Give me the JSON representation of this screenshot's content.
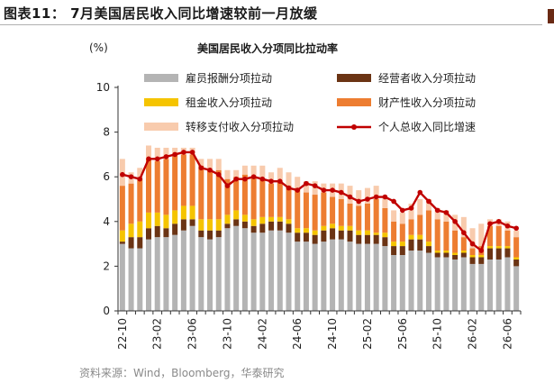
{
  "figure": {
    "title": "图表11： 7月美国居民收入同比增速较前一月放缓",
    "source": "资料来源：Wind，Bloomberg，华泰研究"
  },
  "chart_data": {
    "type": "bar",
    "stacked": true,
    "title": "美国居民收入分项同比拉动率",
    "ylabel": "(%)",
    "xlabel": "",
    "ylim": [
      0,
      10
    ],
    "yticks": [
      0,
      2,
      4,
      6,
      8,
      10
    ],
    "grid": false,
    "legend_position": "top",
    "x": [
      "22-10",
      "22-11",
      "22-12",
      "23-01",
      "23-02",
      "23-03",
      "23-04",
      "23-05",
      "23-06",
      "23-07",
      "23-08",
      "23-09",
      "23-10",
      "23-11",
      "23-12",
      "24-01",
      "24-02",
      "24-03",
      "24-04",
      "24-05",
      "24-06",
      "24-07",
      "24-08",
      "24-09",
      "24-10",
      "24-11",
      "24-12",
      "25-01",
      "25-02",
      "25-03",
      "25-04",
      "25-05",
      "25-06",
      "25-07",
      "25-08",
      "25-09",
      "25-10",
      "25-11",
      "25-12",
      "26-01",
      "26-02",
      "26-03",
      "26-04",
      "26-05",
      "26-06",
      "26-07"
    ],
    "tick_labels": [
      "22-10",
      "23-02",
      "23-06",
      "23-10",
      "24-02",
      "24-06",
      "24-10",
      "25-02",
      "25-06",
      "25-10",
      "26-02",
      "26-06"
    ],
    "series": [
      {
        "name": "雇员报酬分项拉动",
        "color": "#b4b4b4",
        "kind": "bar",
        "values": [
          3.0,
          2.8,
          2.8,
          3.2,
          3.3,
          3.3,
          3.4,
          3.6,
          3.8,
          3.3,
          3.2,
          3.3,
          3.7,
          3.8,
          3.7,
          3.5,
          3.5,
          3.6,
          3.6,
          3.5,
          3.1,
          3.1,
          3.0,
          3.1,
          3.2,
          3.2,
          3.1,
          3.0,
          3.0,
          3.0,
          2.9,
          2.5,
          2.5,
          2.7,
          2.7,
          2.6,
          2.4,
          2.4,
          2.3,
          2.4,
          2.1,
          2.1,
          2.3,
          2.3,
          2.4,
          2.0
        ]
      },
      {
        "name": "经营者收入分项拉动",
        "color": "#6b3414",
        "kind": "bar",
        "values": [
          0.1,
          0.5,
          0.5,
          0.5,
          0.5,
          0.4,
          0.5,
          0.5,
          0.3,
          0.3,
          0.4,
          0.3,
          0.2,
          0.3,
          0.3,
          0.3,
          0.4,
          0.4,
          0.4,
          0.4,
          0.4,
          0.4,
          0.4,
          0.5,
          0.5,
          0.4,
          0.5,
          0.4,
          0.4,
          0.4,
          0.4,
          0.4,
          0.4,
          0.5,
          0.5,
          0.3,
          0.2,
          0.2,
          0.2,
          0.2,
          0.3,
          0.3,
          0.5,
          0.5,
          0.4,
          0.3
        ]
      },
      {
        "name": "租金收入分项拉动",
        "color": "#f5c400",
        "kind": "bar",
        "values": [
          0.5,
          0.6,
          0.7,
          0.7,
          0.6,
          0.6,
          0.6,
          0.6,
          0.6,
          0.5,
          0.5,
          0.5,
          0.4,
          0.4,
          0.3,
          0.3,
          0.3,
          0.2,
          0.2,
          0.2,
          0.2,
          0.2,
          0.2,
          0.2,
          0.2,
          0.2,
          0.2,
          0.2,
          0.2,
          0.1,
          0.2,
          0.2,
          0.2,
          0.2,
          0.2,
          0.2,
          0.1,
          0.1,
          0.1,
          0.1,
          0.1,
          0.1,
          0.1,
          0.1,
          0.1,
          0.1
        ]
      },
      {
        "name": "财产性收入分项拉动",
        "color": "#ed7d31",
        "kind": "bar",
        "values": [
          2.0,
          1.8,
          1.9,
          2.4,
          2.3,
          2.5,
          2.5,
          2.3,
          2.3,
          2.4,
          2.2,
          2.2,
          1.6,
          1.5,
          1.8,
          1.9,
          1.7,
          1.5,
          1.6,
          1.5,
          1.8,
          1.6,
          1.6,
          1.5,
          1.2,
          1.2,
          1.0,
          1.1,
          1.2,
          1.5,
          1.1,
          0.9,
          0.8,
          0.7,
          0.9,
          1.4,
          1.4,
          1.3,
          1.0,
          0.6,
          0.3,
          0.4,
          0.9,
          0.9,
          0.7,
          0.9
        ]
      },
      {
        "name": "转移支付收入分项拉动",
        "color": "#f8cbad",
        "kind": "bar",
        "values": [
          1.2,
          0.5,
          0.5,
          0.6,
          0.6,
          0.5,
          0.3,
          0.3,
          0.3,
          0.3,
          0.5,
          0.5,
          0.4,
          0.3,
          0.4,
          0.5,
          0.6,
          0.5,
          0.6,
          0.6,
          0.5,
          0.5,
          0.6,
          0.4,
          0.6,
          0.7,
          0.8,
          0.7,
          0.7,
          0.6,
          0.5,
          0.5,
          0.5,
          0.7,
          0.7,
          0.5,
          0.5,
          0.5,
          0.7,
          0.9,
          0.9,
          1.0,
          0.3,
          0.3,
          0.4,
          0.3
        ]
      },
      {
        "name": "个人总收入同比增速",
        "color": "#c00000",
        "kind": "line",
        "values": [
          6.1,
          6.0,
          5.9,
          6.8,
          6.8,
          6.9,
          7.0,
          7.1,
          7.1,
          6.4,
          6.3,
          6.1,
          5.6,
          5.9,
          5.9,
          6.0,
          5.9,
          5.8,
          5.8,
          5.5,
          5.4,
          5.7,
          5.6,
          5.4,
          5.4,
          5.3,
          5.1,
          4.9,
          5.0,
          5.1,
          5.1,
          4.9,
          4.5,
          4.6,
          5.3,
          4.9,
          4.5,
          4.4,
          4.0,
          3.5,
          3.0,
          2.7,
          3.9,
          4.0,
          3.8,
          3.7
        ]
      }
    ]
  }
}
